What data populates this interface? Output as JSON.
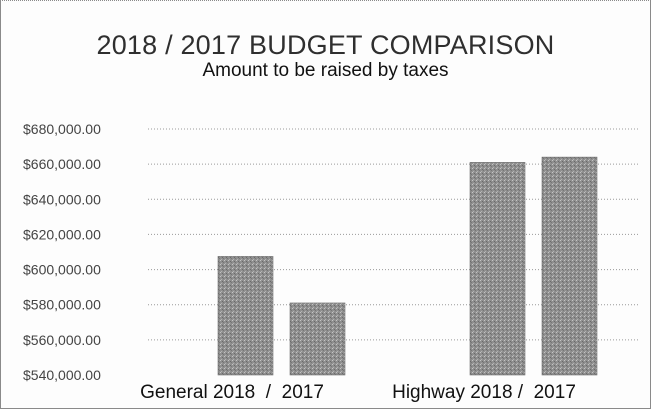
{
  "chart_data": {
    "type": "bar",
    "title": "2018 / 2017 BUDGET COMPARISON",
    "subtitle": "Amount to be raised by taxes",
    "xlabel": "",
    "ylabel": "",
    "ylim": [
      540000,
      680000
    ],
    "ytick_step": 20000,
    "ytick_labels": [
      "$540,000.00",
      "$560,000.00",
      "$580,000.00",
      "$600,000.00",
      "$620,000.00",
      "$640,000.00",
      "$660,000.00",
      "$680,000.00"
    ],
    "grid": true,
    "legend": "none",
    "categories": [
      "General 2018  /  2017",
      "Highway 2018 /  2017"
    ],
    "series": [
      {
        "values": [
          607500,
          661000
        ]
      },
      {
        "values": [
          581000,
          664000
        ]
      }
    ],
    "bar_color": "#8f8f8f"
  }
}
